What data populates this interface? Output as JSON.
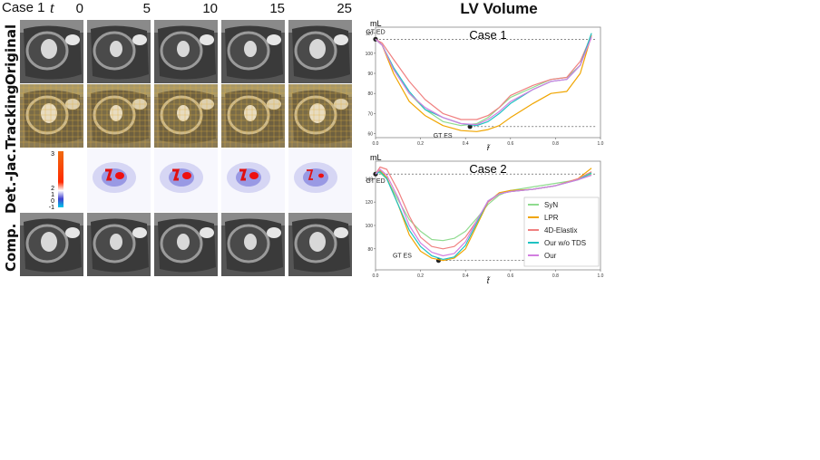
{
  "figure": {
    "case_label": "Case 1",
    "time_symbol": "t",
    "time_frames": [
      "0",
      "5",
      "10",
      "15",
      "25"
    ],
    "row_labels": [
      "Original",
      "Tracking",
      "Det.-Jac.",
      "Comp."
    ],
    "colorbar": {
      "tick_labels": [
        "3",
        "2",
        "1",
        "0",
        "-1"
      ]
    }
  },
  "chart_title": "LV Volume",
  "chart_data": [
    {
      "type": "line",
      "title": "Case 1",
      "ylabel": "mL",
      "xlabel": "t̃",
      "xlim": [
        0.0,
        1.0
      ],
      "ylim": [
        58,
        113
      ],
      "x_ticks": [
        "0.0",
        "0.2",
        "0.4",
        "0.6",
        "0.8",
        "1.0"
      ],
      "y_ticks": [
        "60",
        "70",
        "80",
        "90",
        "100",
        "110"
      ],
      "reference_lines": [
        {
          "label": "GT ED",
          "y": 107,
          "x": 0.0
        },
        {
          "label": "GT ES",
          "y": 63.5,
          "x": 0.42
        }
      ],
      "series": [
        {
          "name": "SyN",
          "color": "#8fdb8f",
          "x": [
            0.0,
            0.03,
            0.08,
            0.15,
            0.22,
            0.3,
            0.38,
            0.45,
            0.5,
            0.55,
            0.6,
            0.7,
            0.78,
            0.85,
            0.91,
            0.96
          ],
          "y": [
            107,
            104,
            92,
            80,
            72,
            66,
            64,
            65,
            68,
            73,
            78,
            83,
            87,
            88,
            94,
            110
          ]
        },
        {
          "name": "LPR",
          "color": "#f0a500",
          "x": [
            0.0,
            0.03,
            0.08,
            0.15,
            0.22,
            0.3,
            0.38,
            0.45,
            0.5,
            0.55,
            0.6,
            0.7,
            0.78,
            0.85,
            0.91,
            0.96
          ],
          "y": [
            107,
            104,
            90,
            76,
            69,
            64,
            61.5,
            61,
            62,
            64,
            68,
            75,
            80,
            81,
            90,
            109
          ]
        },
        {
          "name": "4D-Elastix",
          "color": "#f08080",
          "x": [
            0.0,
            0.03,
            0.08,
            0.15,
            0.22,
            0.3,
            0.38,
            0.45,
            0.5,
            0.55,
            0.6,
            0.7,
            0.78,
            0.85,
            0.91,
            0.96
          ],
          "y": [
            107,
            105,
            97,
            86,
            77,
            70,
            67,
            67,
            69,
            73,
            79,
            84,
            87,
            88,
            96,
            109
          ]
        },
        {
          "name": "Our w/o TDS",
          "color": "#1fc2c2",
          "x": [
            0.0,
            0.03,
            0.08,
            0.15,
            0.22,
            0.3,
            0.38,
            0.45,
            0.5,
            0.55,
            0.6,
            0.7,
            0.78,
            0.85,
            0.91,
            0.96
          ],
          "y": [
            107,
            104,
            93,
            81,
            72,
            68,
            65,
            64,
            66,
            70,
            75,
            82,
            86,
            87,
            94,
            110
          ]
        },
        {
          "name": "Our",
          "color": "#d27fe0",
          "x": [
            0.0,
            0.03,
            0.08,
            0.15,
            0.22,
            0.3,
            0.38,
            0.45,
            0.5,
            0.55,
            0.6,
            0.7,
            0.78,
            0.85,
            0.91,
            0.96
          ],
          "y": [
            107,
            104,
            92,
            80,
            73,
            68,
            65,
            64.5,
            67,
            71,
            76,
            82,
            86,
            87,
            94,
            108
          ]
        }
      ]
    },
    {
      "type": "line",
      "title": "Case 2",
      "ylabel": "mL",
      "xlabel": "t̃",
      "xlim": [
        0.0,
        1.0
      ],
      "ylim": [
        62,
        155
      ],
      "x_ticks": [
        "0.0",
        "0.2",
        "0.4",
        "0.6",
        "0.8",
        "1.0"
      ],
      "y_ticks": [
        "80",
        "100",
        "120",
        "140"
      ],
      "reference_lines": [
        {
          "label": "GT ED",
          "y": 144,
          "x": 0.0
        },
        {
          "label": "GT ES",
          "y": 70,
          "x": 0.28
        }
      ],
      "legend": "center-right",
      "series": [
        {
          "name": "SyN",
          "color": "#8fdb8f",
          "x": [
            0.0,
            0.02,
            0.05,
            0.1,
            0.15,
            0.2,
            0.25,
            0.3,
            0.35,
            0.4,
            0.45,
            0.5,
            0.55,
            0.6,
            0.7,
            0.8,
            0.9,
            0.96
          ],
          "y": [
            146,
            145,
            140,
            122,
            105,
            95,
            88,
            87,
            89,
            95,
            106,
            118,
            126,
            130,
            133,
            136,
            139,
            144
          ]
        },
        {
          "name": "LPR",
          "color": "#f0a500",
          "x": [
            0.0,
            0.02,
            0.05,
            0.1,
            0.15,
            0.2,
            0.25,
            0.3,
            0.35,
            0.4,
            0.45,
            0.5,
            0.55,
            0.6,
            0.7,
            0.8,
            0.9,
            0.96
          ],
          "y": [
            144,
            147,
            141,
            118,
            92,
            78,
            72,
            70,
            72,
            80,
            100,
            120,
            128,
            130,
            131,
            134,
            140,
            149
          ]
        },
        {
          "name": "4D-Elastix",
          "color": "#f08080",
          "x": [
            0.0,
            0.02,
            0.05,
            0.1,
            0.15,
            0.2,
            0.25,
            0.3,
            0.35,
            0.4,
            0.45,
            0.5,
            0.55,
            0.6,
            0.7,
            0.8,
            0.9,
            0.96
          ],
          "y": [
            144,
            150,
            148,
            130,
            108,
            90,
            82,
            80,
            82,
            90,
            104,
            120,
            127,
            129,
            131,
            134,
            140,
            146
          ]
        },
        {
          "name": "Our w/o TDS",
          "color": "#1fc2c2",
          "x": [
            0.0,
            0.02,
            0.05,
            0.1,
            0.15,
            0.2,
            0.25,
            0.3,
            0.35,
            0.4,
            0.45,
            0.5,
            0.55,
            0.6,
            0.7,
            0.8,
            0.9,
            0.96
          ],
          "y": [
            144,
            146,
            140,
            118,
            96,
            82,
            74,
            71,
            73,
            83,
            102,
            121,
            127,
            129,
            131,
            134,
            139,
            145
          ]
        },
        {
          "name": "Our",
          "color": "#d27fe0",
          "x": [
            0.0,
            0.02,
            0.05,
            0.1,
            0.15,
            0.2,
            0.25,
            0.3,
            0.35,
            0.4,
            0.45,
            0.5,
            0.55,
            0.6,
            0.7,
            0.8,
            0.9,
            0.96
          ],
          "y": [
            144,
            148,
            143,
            124,
            100,
            85,
            77,
            74,
            76,
            86,
            104,
            121,
            127,
            129,
            131,
            134,
            139,
            143
          ]
        }
      ]
    }
  ]
}
